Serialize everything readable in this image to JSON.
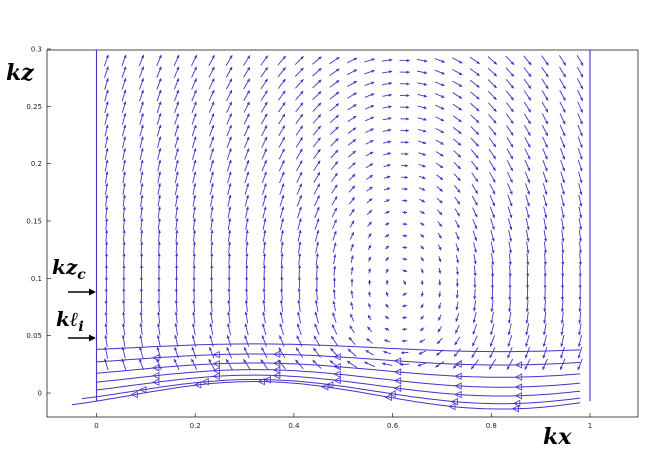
{
  "chart_data": {
    "type": "vector-field",
    "xlabel": "kx",
    "ylabel": "kz",
    "xlim": [
      -0.1,
      1.1
    ],
    "ylim": [
      -0.02,
      0.3
    ],
    "x_ticks": [
      "0",
      "0.2",
      "0.4",
      "0.6",
      "0.8",
      "1"
    ],
    "y_ticks": [
      "0",
      "0.05",
      "0.1",
      "0.15",
      "0.2",
      "0.25",
      "0.3"
    ],
    "x_tick_values": [
      0,
      0.2,
      0.4,
      0.6,
      0.8,
      1
    ],
    "y_tick_values": [
      0,
      0.05,
      0.1,
      0.15,
      0.2,
      0.25,
      0.3
    ],
    "grid": false,
    "vortex_center": [
      0.62,
      0.09
    ],
    "domain_left_x": 0,
    "domain_right_x": 1,
    "annotations": [
      {
        "label": "kz",
        "subscript": "c",
        "y": 0.088
      },
      {
        "label": "kℓ",
        "subscript": "i",
        "y": 0.047
      }
    ],
    "color": "#4b2fc9"
  }
}
